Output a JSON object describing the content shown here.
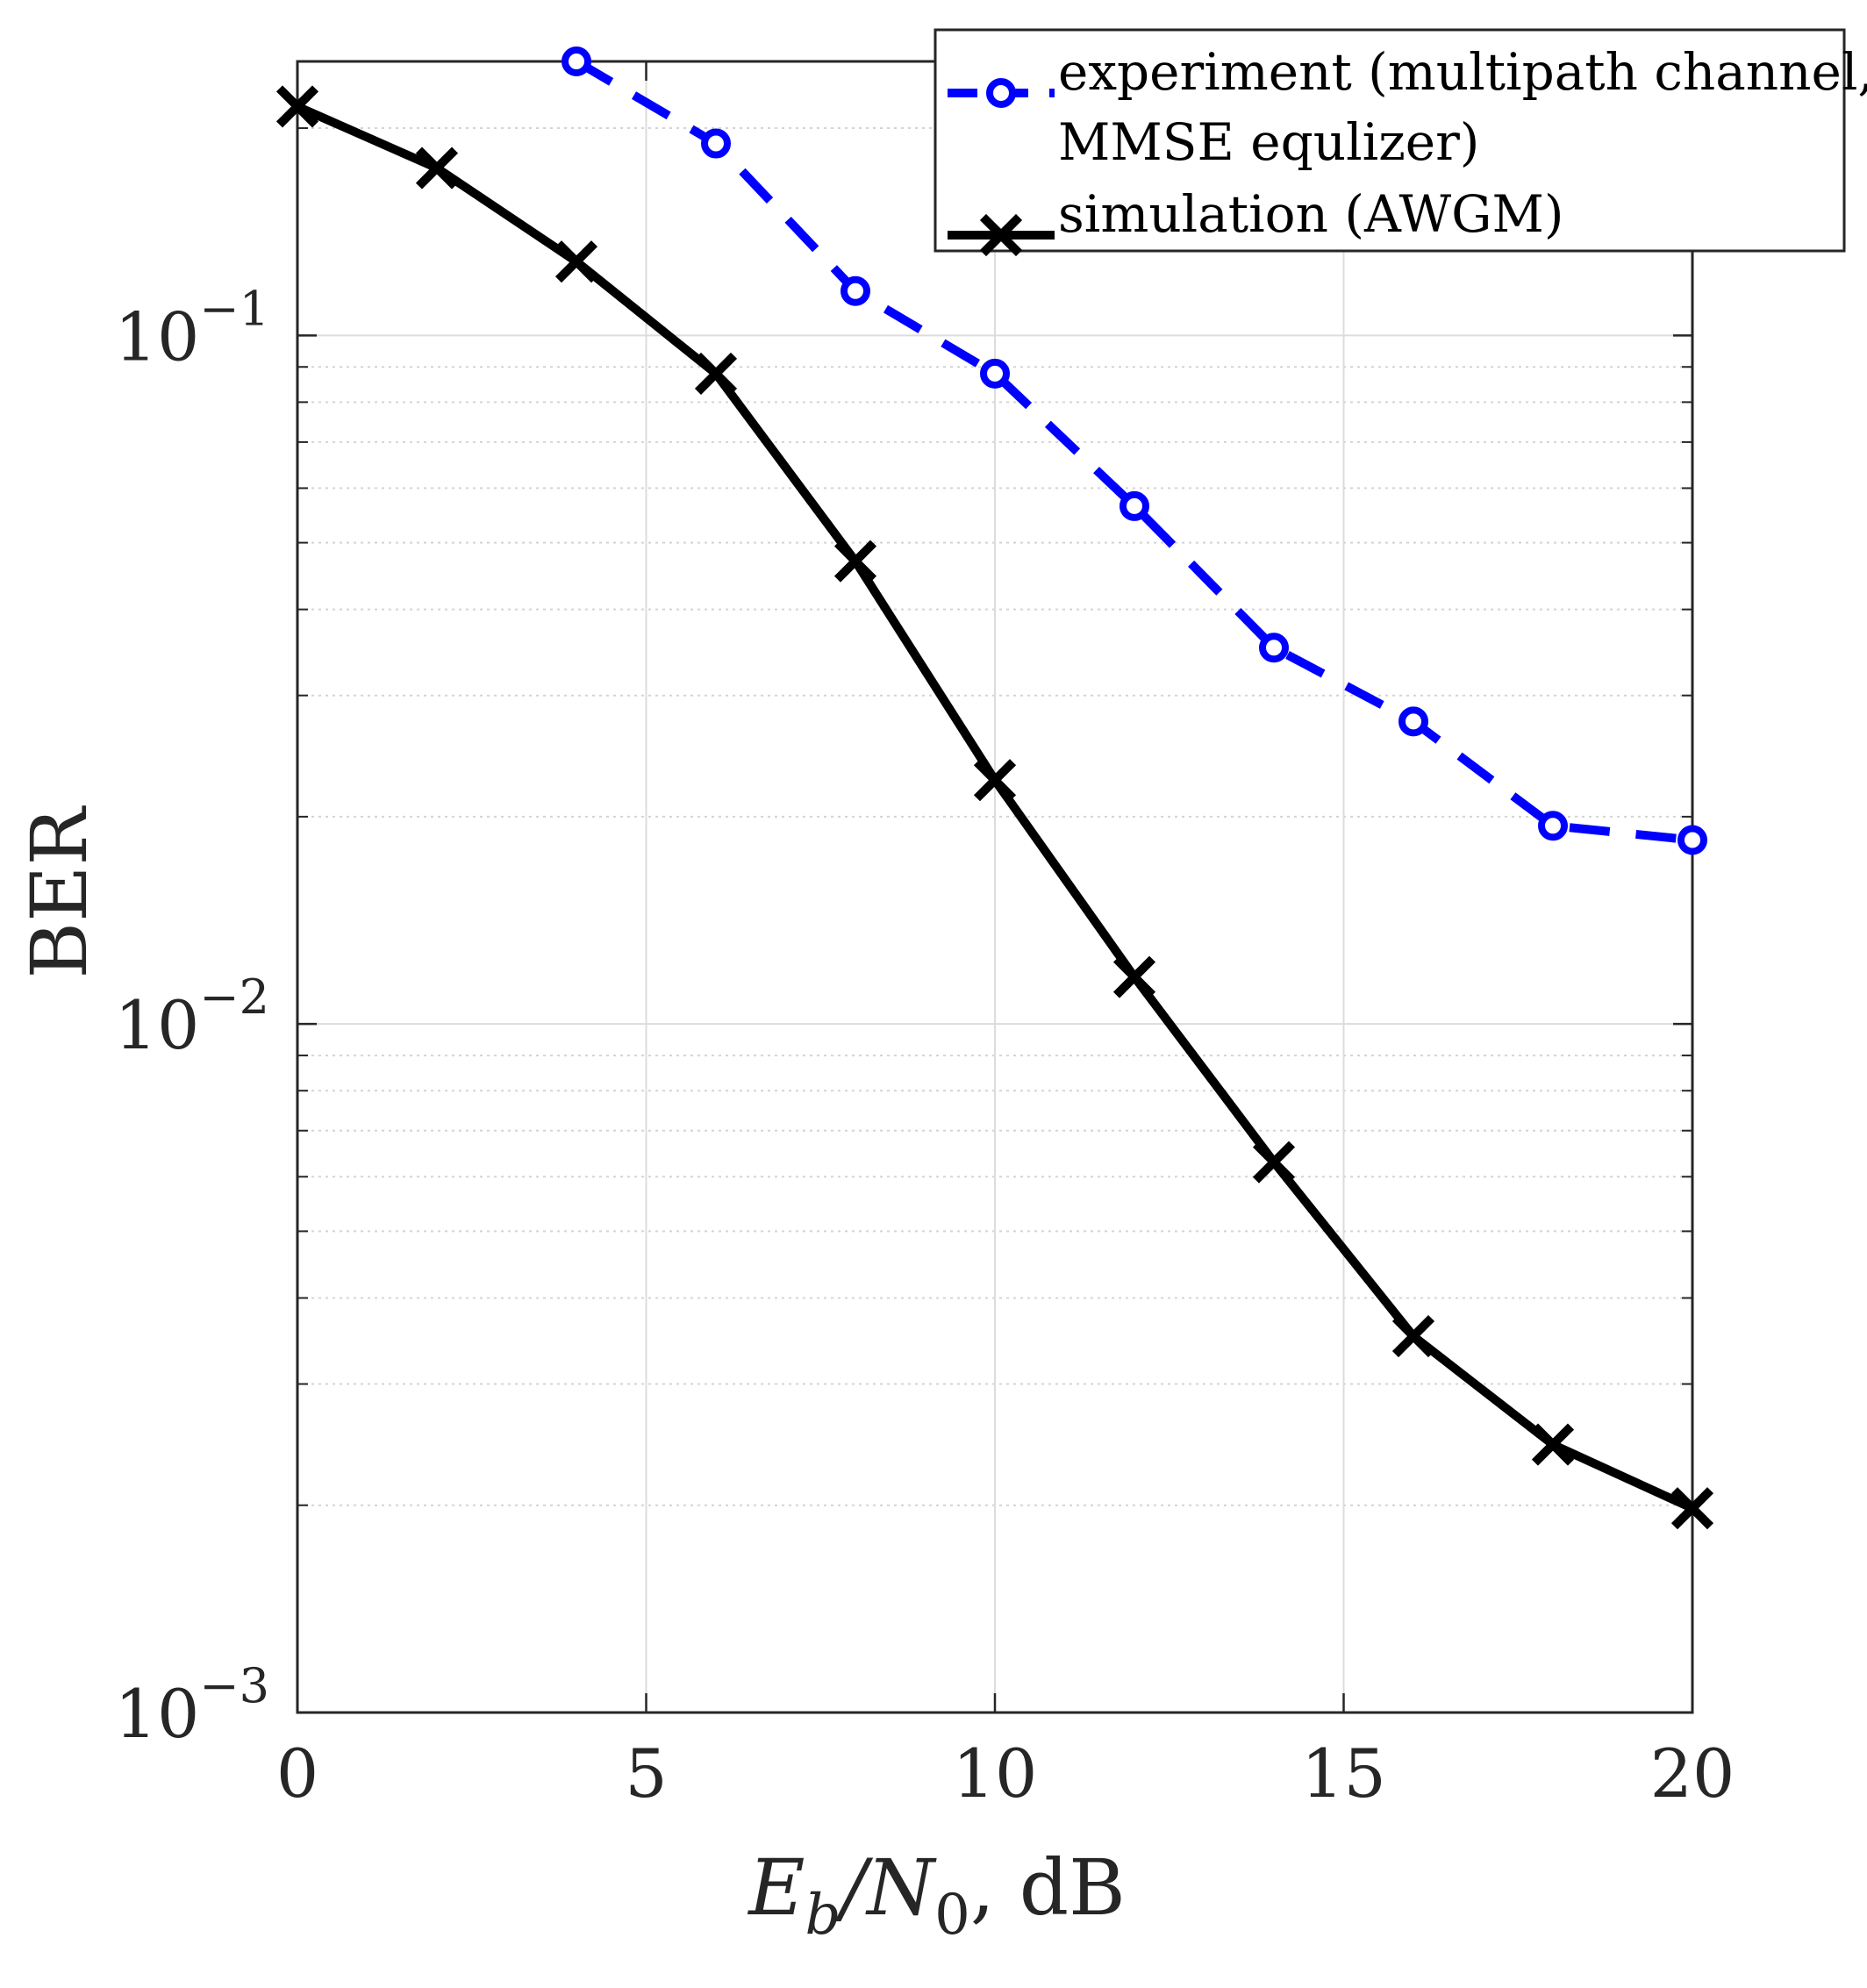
{
  "chart_data": {
    "type": "line",
    "yscale": "log",
    "xlabel": {
      "main": "E",
      "sub1": "b",
      "mid": "/N",
      "sub2": "0",
      "tail": ", dB"
    },
    "ylabel": "BER",
    "xlim": [
      0,
      20
    ],
    "ylim": [
      0.001,
      0.25
    ],
    "xticks": [
      {
        "value": 0,
        "label": "0"
      },
      {
        "value": 5,
        "label": "5"
      },
      {
        "value": 10,
        "label": "10"
      },
      {
        "value": 15,
        "label": "15"
      },
      {
        "value": 20,
        "label": "20"
      }
    ],
    "yticks": [
      {
        "value": 0.1,
        "base": "10",
        "exp": "−1"
      },
      {
        "value": 0.01,
        "base": "10",
        "exp": "−2"
      },
      {
        "value": 0.001,
        "base": "10",
        "exp": "−3"
      }
    ],
    "grid": true,
    "legend_position": "top-right",
    "series": [
      {
        "name_lines": [
          "experiment (multipath channel,",
          "MMSE equlizer)"
        ],
        "color": "#0000ff",
        "line_style": "dashed",
        "marker": "circle",
        "x": [
          4,
          6,
          8,
          10,
          12,
          14,
          16,
          18,
          20
        ],
        "y": [
          0.25,
          0.19,
          0.116,
          0.088,
          0.0565,
          0.0352,
          0.0275,
          0.0194,
          0.0185
        ]
      },
      {
        "name_lines": [
          "simulation (AWGM)"
        ],
        "color": "#000000",
        "line_style": "solid",
        "marker": "x",
        "x": [
          0,
          2,
          4,
          6,
          8,
          10,
          12,
          14,
          16,
          18,
          20
        ],
        "y": [
          0.215,
          0.175,
          0.128,
          0.088,
          0.047,
          0.0226,
          0.0117,
          0.0063,
          0.00352,
          0.00245,
          0.00198
        ]
      }
    ]
  }
}
